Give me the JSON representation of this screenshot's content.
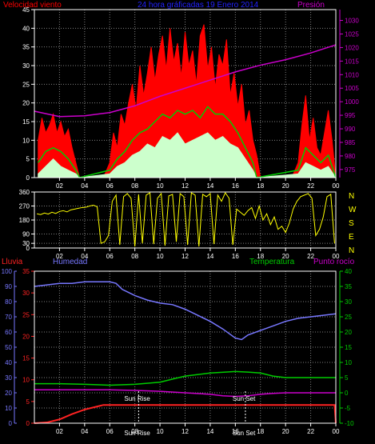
{
  "header": {
    "left_title": "Velocidad viento",
    "center_title": "24 hora gráficadas 19 Enero 2014",
    "right_title": "Presión"
  },
  "compass": [
    "N",
    "W",
    "S",
    "E",
    "N"
  ],
  "lower_labels": {
    "lluvia": "Lluvia",
    "humedad": "Humedad",
    "temperatura": "Temperatura",
    "punto_rocio": "Punto rocío",
    "sun_rise": "Sun Rise",
    "sun_set": "Sun Set",
    "sun_rise_axis": "Sun Rise",
    "sun_set_axis": "Sun Set"
  },
  "colors": {
    "wind_gust": "#ff0000",
    "wind_avg": "#00cc00",
    "wind_min": "#ccffcc",
    "pressure": "#cc00cc",
    "direction": "#ffff00",
    "humidity": "#7777ff",
    "temperature": "#00cc00",
    "dewpoint": "#cc00cc",
    "rain": "#ff2222",
    "grid": "#808080",
    "axis": "#ffffff"
  },
  "chart_data": [
    {
      "type": "area",
      "title": "",
      "xlabel": "",
      "x_ticks": [
        "02",
        "04",
        "06",
        "08",
        "10",
        "12",
        "14",
        "16",
        "18",
        "20",
        "22",
        "00"
      ],
      "x_range_hours": [
        0,
        24
      ],
      "left_axis": {
        "label": "Velocidad viento",
        "range": [
          0,
          45
        ],
        "ticks": [
          0,
          5,
          10,
          15,
          20,
          25,
          30,
          35,
          40,
          45
        ]
      },
      "right_axis": {
        "label": "Presión",
        "range": [
          972,
          1034
        ],
        "ticks": [
          975,
          980,
          985,
          990,
          995,
          1000,
          1005,
          1010,
          1015,
          1020,
          1025,
          1030
        ]
      },
      "series": [
        {
          "name": "",
          "role": "gust",
          "x": [
            0.3,
            0.6,
            0.9,
            1.2,
            1.5,
            1.8,
            2.1,
            2.4,
            2.7,
            3.0,
            3.3,
            3.6,
            4.0,
            5.5,
            6.0,
            6.3,
            6.6,
            6.9,
            7.2,
            7.5,
            7.8,
            8.1,
            8.4,
            8.7,
            9.0,
            9.3,
            9.6,
            9.9,
            10.2,
            10.5,
            10.8,
            11.1,
            11.4,
            11.7,
            12.0,
            12.3,
            12.6,
            12.9,
            13.2,
            13.5,
            13.8,
            14.1,
            14.4,
            14.7,
            15.0,
            15.3,
            15.6,
            15.9,
            16.2,
            16.5,
            16.8,
            17.1,
            17.4,
            17.7,
            18.0,
            18.5,
            19.0,
            19.5,
            20.0,
            20.5,
            21.0,
            21.3,
            21.6,
            21.9,
            22.2,
            22.5,
            22.8,
            23.1,
            23.4,
            23.7,
            24.0
          ],
          "values": [
            10,
            16,
            12,
            14,
            17,
            12,
            15,
            11,
            13,
            8,
            4,
            0,
            0,
            0,
            4,
            12,
            8,
            17,
            14,
            20,
            25,
            18,
            30,
            22,
            28,
            35,
            26,
            33,
            38,
            29,
            40,
            31,
            36,
            27,
            39,
            30,
            34,
            25,
            38,
            41,
            29,
            35,
            24,
            33,
            30,
            37,
            22,
            28,
            19,
            25,
            14,
            18,
            10,
            6,
            0,
            0,
            0,
            0,
            0,
            0,
            4,
            14,
            22,
            10,
            16,
            8,
            6,
            12,
            18,
            10,
            0
          ]
        },
        {
          "name": "",
          "role": "average",
          "x": [
            0.3,
            0.9,
            1.5,
            2.1,
            2.7,
            3.3,
            3.6,
            6.0,
            6.6,
            7.2,
            7.8,
            8.4,
            9.0,
            9.6,
            10.2,
            10.8,
            11.4,
            12.0,
            12.6,
            13.2,
            13.8,
            14.4,
            15.0,
            15.6,
            16.2,
            16.8,
            17.4,
            17.7,
            21.0,
            21.6,
            22.2,
            22.8,
            23.4,
            24.0
          ],
          "values": [
            4,
            7,
            8,
            7,
            5,
            2,
            0,
            2,
            5,
            7,
            10,
            12,
            13,
            15,
            17,
            16,
            18,
            17,
            18,
            16,
            19,
            17,
            17,
            15,
            12,
            8,
            4,
            0,
            2,
            8,
            6,
            4,
            6,
            0
          ]
        },
        {
          "name": "",
          "role": "minimum",
          "x": [
            0.3,
            0.9,
            1.5,
            2.1,
            2.7,
            3.3,
            3.6,
            6.0,
            6.6,
            7.2,
            7.8,
            8.4,
            9.0,
            9.6,
            10.2,
            10.8,
            11.4,
            12.0,
            12.6,
            13.2,
            13.8,
            14.4,
            15.0,
            15.6,
            16.2,
            16.8,
            17.4,
            17.7,
            21.0,
            21.6,
            22.2,
            22.8,
            23.4,
            24.0
          ],
          "values": [
            1,
            3,
            5,
            3,
            2,
            1,
            0,
            1,
            3,
            4,
            6,
            7,
            9,
            8,
            11,
            10,
            12,
            9,
            10,
            11,
            12,
            10,
            11,
            9,
            8,
            5,
            2,
            0,
            1,
            4,
            3,
            2,
            3,
            0
          ]
        },
        {
          "name": "Presión",
          "role": "pressure",
          "axis": "right",
          "x": [
            0,
            2,
            4,
            6,
            8,
            10,
            12,
            14,
            16,
            18,
            20,
            22,
            24
          ],
          "values": [
            996.5,
            994.5,
            994.8,
            996,
            998.5,
            1002,
            1005,
            1008,
            1011,
            1013.5,
            1015.5,
            1018,
            1021
          ]
        }
      ]
    },
    {
      "type": "scatter",
      "title": "",
      "x_ticks": [
        "02",
        "04",
        "06",
        "08",
        "10",
        "12",
        "14",
        "16",
        "18",
        "20",
        "22",
        "00"
      ],
      "y_axis": {
        "range": [
          0,
          360
        ],
        "ticks": [
          0,
          30,
          90,
          180,
          270,
          360
        ]
      },
      "series": [
        {
          "name": "",
          "x": [
            0.2,
            0.5,
            0.8,
            1.1,
            1.4,
            1.7,
            2.0,
            2.3,
            2.6,
            2.9,
            3.2,
            3.5,
            3.8,
            4.1,
            4.4,
            4.7,
            5.0,
            5.3,
            5.6,
            5.9,
            6.2,
            6.5,
            6.8,
            7.1,
            7.4,
            7.7,
            8.0,
            8.3,
            8.6,
            8.9,
            9.2,
            9.5,
            9.8,
            10.1,
            10.4,
            10.7,
            11.0,
            11.3,
            11.6,
            11.9,
            12.2,
            12.5,
            12.8,
            13.1,
            13.4,
            13.7,
            14.0,
            14.3,
            14.6,
            14.9,
            15.2,
            15.5,
            15.8,
            16.1,
            16.4,
            16.7,
            17.0,
            17.3,
            17.6,
            17.9,
            18.2,
            18.5,
            18.8,
            19.1,
            19.4,
            19.7,
            20.0,
            20.3,
            20.6,
            20.9,
            21.2,
            21.5,
            21.8,
            22.1,
            22.4,
            22.7,
            23.0,
            23.3,
            23.6,
            23.9
          ],
          "values": [
            220,
            215,
            225,
            218,
            230,
            222,
            235,
            240,
            232,
            245,
            250,
            255,
            260,
            262,
            270,
            275,
            265,
            30,
            40,
            80,
            300,
            340,
            20,
            330,
            350,
            320,
            10,
            345,
            30,
            340,
            355,
            25,
            320,
            350,
            15,
            335,
            345,
            40,
            350,
            330,
            20,
            355,
            340,
            10,
            345,
            330,
            350,
            25,
            340,
            300,
            355,
            320,
            20,
            250,
            230,
            210,
            240,
            260,
            190,
            270,
            180,
            220,
            150,
            200,
            120,
            140,
            100,
            160,
            250,
            300,
            330,
            340,
            350,
            320,
            80,
            120,
            200,
            330,
            345,
            30
          ]
        }
      ]
    },
    {
      "type": "line",
      "title": "",
      "x_ticks": [
        "02",
        "04",
        "06",
        "08",
        "10",
        "12",
        "14",
        "16",
        "18",
        "20",
        "22",
        "00"
      ],
      "axes": {
        "lluvia": {
          "label": "Lluvia",
          "range": [
            0,
            100
          ],
          "ticks": [
            0,
            10,
            20,
            30,
            40,
            50,
            60,
            70,
            80,
            90,
            100
          ]
        },
        "humedad": {
          "label": "Humedad",
          "range": [
            0,
            35
          ],
          "ticks": [
            0,
            5,
            10,
            15,
            20,
            25,
            30,
            35
          ]
        },
        "temperatura": {
          "label": "Temperatura",
          "range": [
            -10,
            40
          ],
          "ticks": [
            -10,
            -5,
            0,
            5,
            10,
            15,
            20,
            25,
            30,
            35,
            40
          ]
        }
      },
      "series": [
        {
          "name": "Humedad",
          "axis": "lluvia",
          "x": [
            0,
            1,
            2,
            3,
            4,
            5,
            6,
            6.5,
            7,
            7.5,
            8,
            9,
            10,
            11,
            12,
            13,
            14,
            15,
            16,
            16.5,
            17,
            18,
            19,
            20,
            21,
            22,
            23,
            24
          ],
          "values": [
            90,
            91,
            92,
            92,
            93,
            93,
            93,
            92,
            88,
            86,
            84,
            81,
            79,
            78,
            75,
            71,
            67,
            62,
            56,
            55,
            58,
            61,
            64,
            67,
            69,
            70,
            71,
            72
          ]
        },
        {
          "name": "Temperatura",
          "axis": "temperatura",
          "x": [
            0,
            2,
            4,
            6,
            8,
            10,
            11,
            12,
            14,
            16,
            17,
            18,
            19,
            20,
            22,
            24
          ],
          "values": [
            3,
            3,
            2.8,
            2.5,
            2.8,
            3.5,
            4.5,
            5.5,
            6.5,
            7,
            6.8,
            6.5,
            5.5,
            5,
            5,
            5
          ]
        },
        {
          "name": "Punto rocío",
          "axis": "temperatura",
          "x": [
            0,
            2,
            4,
            6,
            8,
            10,
            12,
            14,
            15,
            16,
            17,
            18,
            19,
            20,
            22,
            24
          ],
          "values": [
            1,
            1,
            1,
            1,
            0.8,
            0.5,
            0,
            -0.5,
            -1,
            -1.2,
            -1,
            -0.5,
            -0.2,
            0,
            0,
            0
          ]
        },
        {
          "name": "Lluvia",
          "axis": "lluvia",
          "x": [
            0,
            1,
            2,
            3,
            4,
            5,
            5.5,
            6,
            8,
            10,
            12,
            14,
            16,
            18,
            20,
            22,
            23.9,
            24
          ],
          "values": [
            0,
            0.5,
            2.5,
            6,
            9,
            11,
            12,
            12,
            12,
            12,
            12,
            12,
            12,
            12,
            12,
            12,
            12,
            0
          ]
        }
      ],
      "markers": {
        "sun_rise_hour": 8.3,
        "sun_set_hour": 16.8
      }
    }
  ]
}
